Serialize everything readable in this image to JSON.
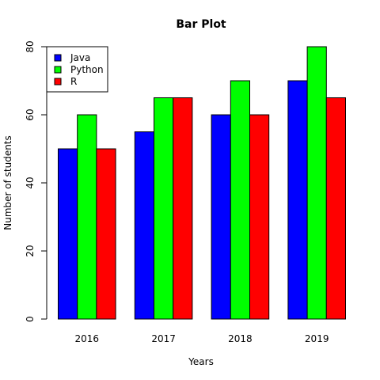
{
  "chart_data": {
    "type": "bar",
    "title": "Bar Plot",
    "xlabel": "Years",
    "ylabel": "Number of students",
    "categories": [
      "2016",
      "2017",
      "2018",
      "2019"
    ],
    "series": [
      {
        "name": "Java",
        "values": [
          50,
          55,
          60,
          70
        ],
        "color": "#0000ff"
      },
      {
        "name": "Python",
        "values": [
          60,
          65,
          70,
          80
        ],
        "color": "#00ff00"
      },
      {
        "name": "R",
        "values": [
          50,
          65,
          60,
          65
        ],
        "color": "#ff0000"
      }
    ],
    "ylim": [
      0,
      80
    ],
    "yticks": [
      0,
      20,
      40,
      60,
      80
    ],
    "grid": false,
    "legend_position": "top-left"
  }
}
